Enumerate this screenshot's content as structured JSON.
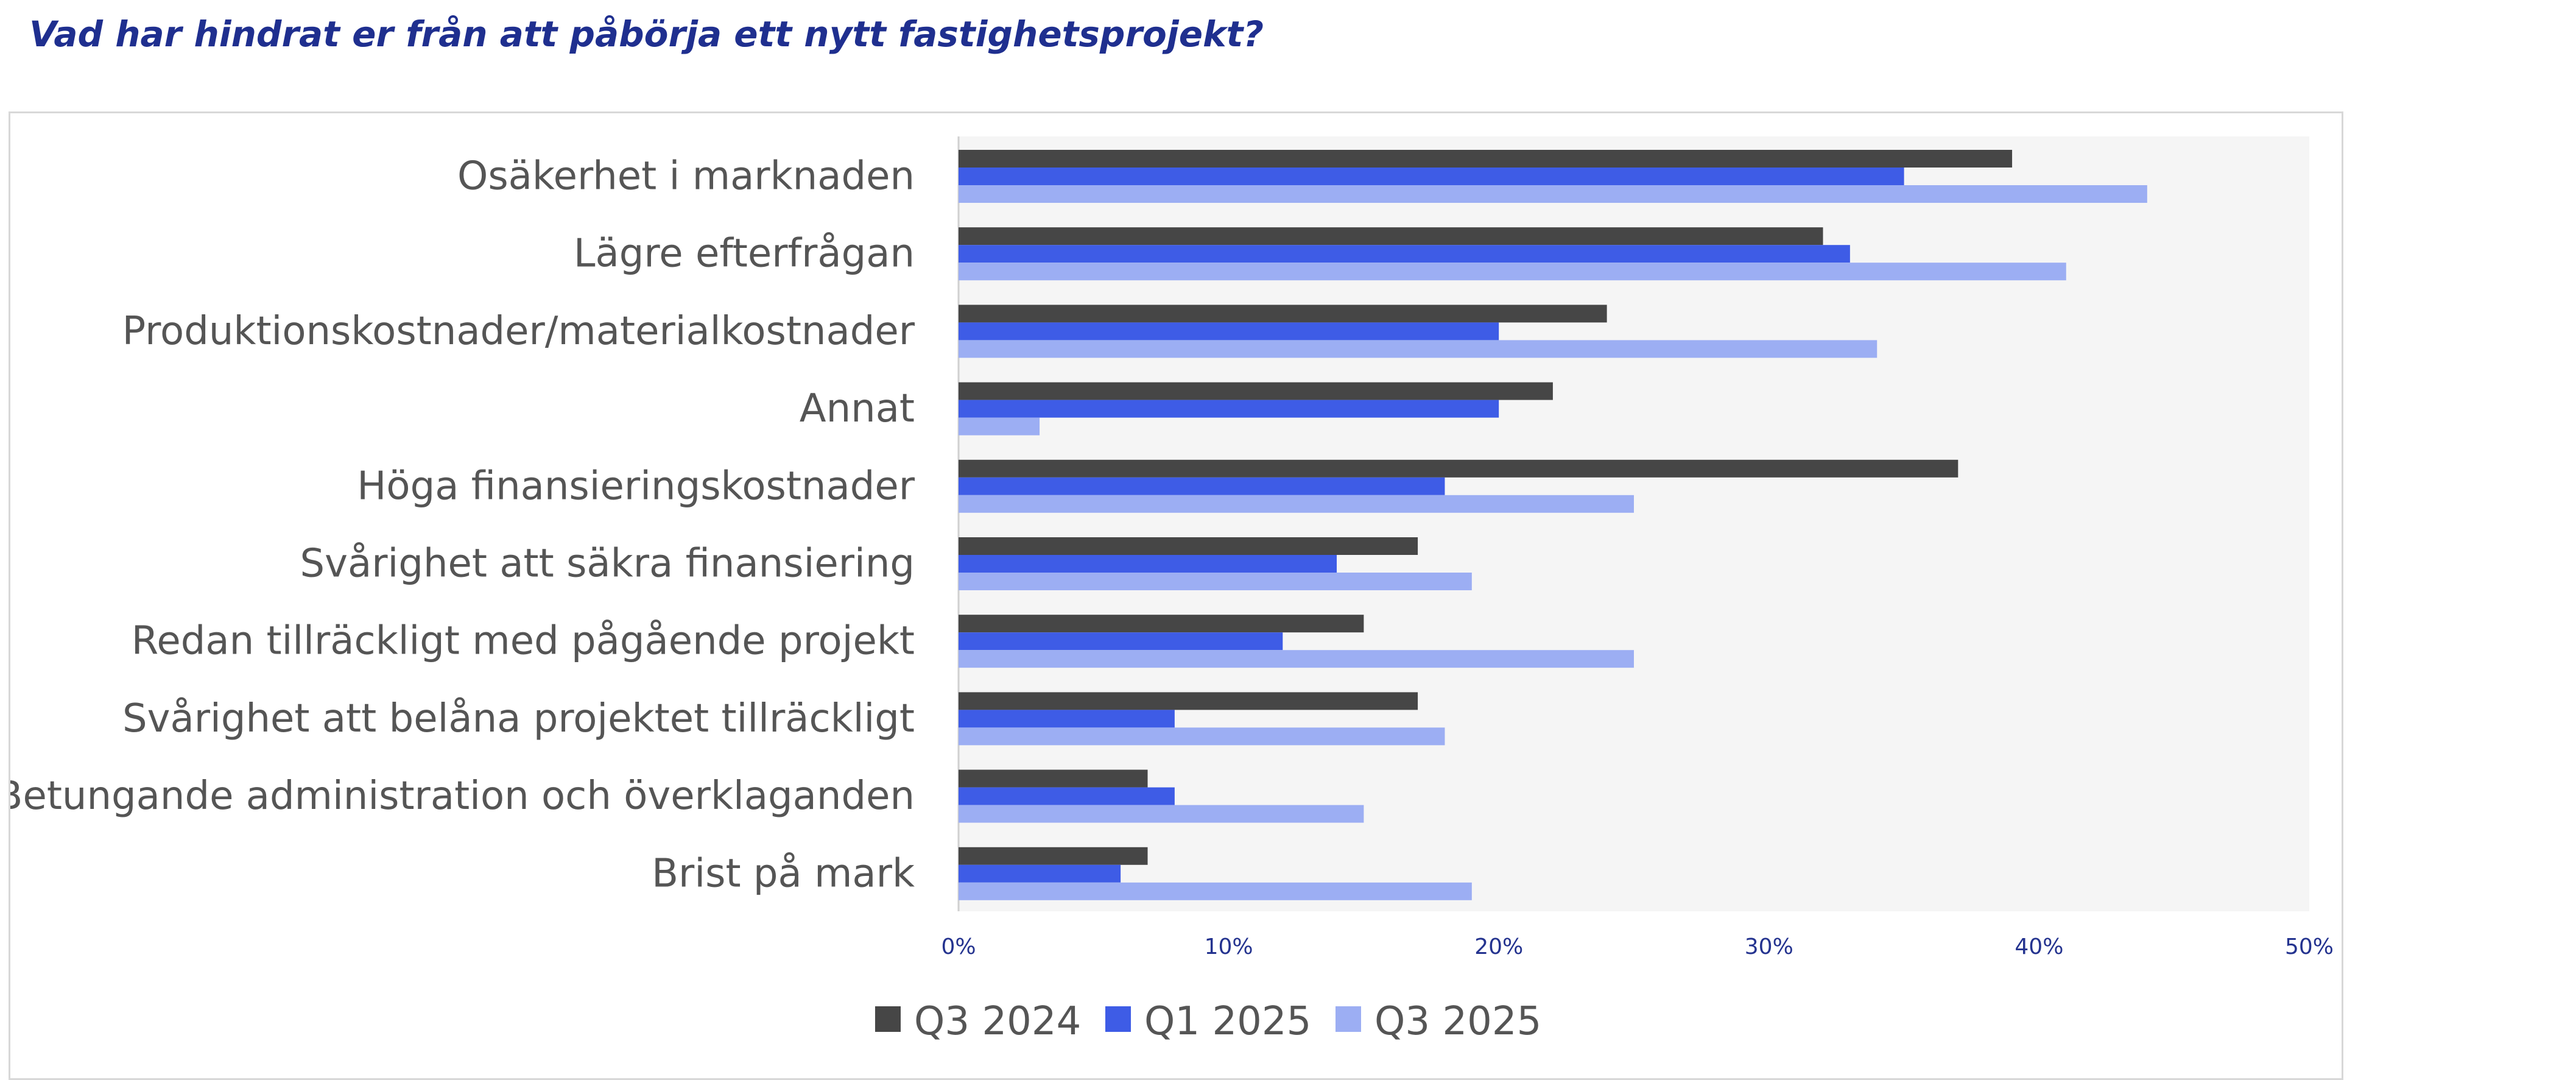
{
  "title": "Vad har hindrat er från att påbörja ett nytt fastighetsprojekt?",
  "chart_data": {
    "type": "bar",
    "orientation": "horizontal",
    "title": "Vad har hindrat er från att påbörja ett nytt fastighetsprojekt?",
    "categories": [
      "Osäkerhet i marknaden",
      "Lägre efterfrågan",
      "Produktionskostnader/materialkostnader",
      "Annat",
      "Höga finansieringskostnader",
      "Svårighet att säkra finansiering",
      "Redan tillräckligt med pågående projekt",
      "Svårighet att belåna projektet tillräckligt",
      "Betungande administration och överklaganden",
      "Brist på mark"
    ],
    "series": [
      {
        "name": "Q3 2024",
        "color": "#464646",
        "values": [
          39,
          32,
          24,
          22,
          37,
          17,
          15,
          17,
          7,
          7
        ]
      },
      {
        "name": "Q1 2025",
        "color": "#3e5ce6",
        "values": [
          35,
          33,
          20,
          20,
          18,
          14,
          12,
          8,
          8,
          6
        ]
      },
      {
        "name": "Q3 2025",
        "color": "#9caef3",
        "values": [
          44,
          41,
          34,
          3,
          25,
          19,
          25,
          18,
          15,
          19
        ]
      }
    ],
    "xlim": [
      0,
      50
    ],
    "xticks": [
      "0%",
      "10%",
      "20%",
      "30%",
      "40%",
      "50%"
    ],
    "plot_background": "#f5f5f5",
    "grid": false,
    "legend_position": "bottom"
  }
}
